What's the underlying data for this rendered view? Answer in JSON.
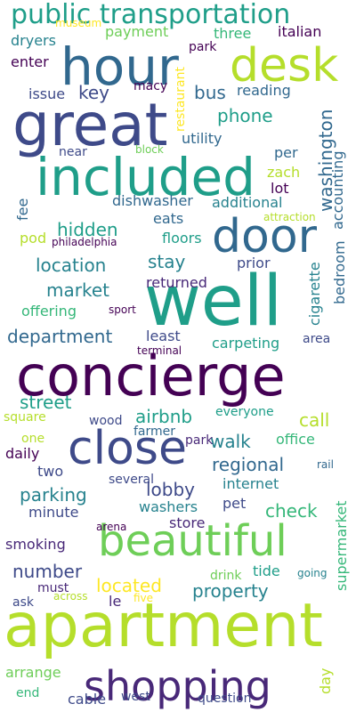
{
  "colors": {
    "background": "#ffffff",
    "palette": [
      "#440154",
      "#482878",
      "#3e4a89",
      "#31688e",
      "#26828e",
      "#1f9e89",
      "#35b779",
      "#6ece58",
      "#b5de2b",
      "#fde725"
    ]
  },
  "words": [
    {
      "text": "public transportation",
      "size": 30,
      "color": "#1f9e89"
    },
    {
      "text": "hour",
      "size": 58,
      "color": "#31688e"
    },
    {
      "text": "desk",
      "size": 52,
      "color": "#b5de2b"
    },
    {
      "text": "great",
      "size": 66,
      "color": "#3e4a89"
    },
    {
      "text": "included",
      "size": 58,
      "color": "#1f9e89"
    },
    {
      "text": "door",
      "size": 52,
      "color": "#31688e"
    },
    {
      "text": "well",
      "size": 78,
      "color": "#1f9e89"
    },
    {
      "text": "concierge",
      "size": 62,
      "color": "#440154"
    },
    {
      "text": "close",
      "size": 52,
      "color": "#3e4a89"
    },
    {
      "text": "beautiful",
      "size": 48,
      "color": "#6ece58"
    },
    {
      "text": "apartment",
      "size": 68,
      "color": "#b5de2b"
    },
    {
      "text": "shopping",
      "size": 46,
      "color": "#482878"
    },
    {
      "text": "museum",
      "size": 12,
      "color": "#fde725"
    },
    {
      "text": "payment",
      "size": 16,
      "color": "#6ece58"
    },
    {
      "text": "restaurant",
      "size": 14,
      "color": "#fde725"
    },
    {
      "text": "park",
      "size": 14,
      "color": "#440154"
    },
    {
      "text": "three",
      "size": 16,
      "color": "#35b779"
    },
    {
      "text": "italian",
      "size": 16,
      "color": "#440154"
    },
    {
      "text": "dryers",
      "size": 16,
      "color": "#26828e"
    },
    {
      "text": "enter",
      "size": 16,
      "color": "#440154"
    },
    {
      "text": "macy",
      "size": 14,
      "color": "#440154"
    },
    {
      "text": "issue",
      "size": 16,
      "color": "#3e4a89"
    },
    {
      "text": "key",
      "size": 20,
      "color": "#3e4a89"
    },
    {
      "text": "bus",
      "size": 20,
      "color": "#31688e"
    },
    {
      "text": "reading",
      "size": 16,
      "color": "#31688e"
    },
    {
      "text": "phone",
      "size": 20,
      "color": "#1f9e89"
    },
    {
      "text": "utility",
      "size": 16,
      "color": "#31688e"
    },
    {
      "text": "washington",
      "size": 20,
      "color": "#31688e"
    },
    {
      "text": "near",
      "size": 14,
      "color": "#3e4a89"
    },
    {
      "text": "block",
      "size": 12,
      "color": "#6ece58"
    },
    {
      "text": "per",
      "size": 16,
      "color": "#31688e"
    },
    {
      "text": "accounting",
      "size": 16,
      "color": "#31688e"
    },
    {
      "text": "zach",
      "size": 16,
      "color": "#b5de2b"
    },
    {
      "text": "lot",
      "size": 16,
      "color": "#440154"
    },
    {
      "text": "fee",
      "size": 16,
      "color": "#31688e"
    },
    {
      "text": "dishwasher",
      "size": 16,
      "color": "#31688e"
    },
    {
      "text": "eats",
      "size": 16,
      "color": "#31688e"
    },
    {
      "text": "additional",
      "size": 16,
      "color": "#26828e"
    },
    {
      "text": "attraction",
      "size": 12,
      "color": "#b5de2b"
    },
    {
      "text": "hidden",
      "size": 20,
      "color": "#1f9e89"
    },
    {
      "text": "pod",
      "size": 16,
      "color": "#b5de2b"
    },
    {
      "text": "philadelphia",
      "size": 12,
      "color": "#440154"
    },
    {
      "text": "floors",
      "size": 16,
      "color": "#1f9e89"
    },
    {
      "text": "bedroom",
      "size": 16,
      "color": "#31688e"
    },
    {
      "text": "location",
      "size": 20,
      "color": "#26828e"
    },
    {
      "text": "stay",
      "size": 20,
      "color": "#26828e"
    },
    {
      "text": "prior",
      "size": 16,
      "color": "#3e4a89"
    },
    {
      "text": "market",
      "size": 20,
      "color": "#26828e"
    },
    {
      "text": "returned",
      "size": 16,
      "color": "#482878"
    },
    {
      "text": "cigarette",
      "size": 16,
      "color": "#26828e"
    },
    {
      "text": "offering",
      "size": 16,
      "color": "#35b779"
    },
    {
      "text": "sport",
      "size": 12,
      "color": "#440154"
    },
    {
      "text": "department",
      "size": 20,
      "color": "#31688e"
    },
    {
      "text": "least",
      "size": 16,
      "color": "#3e4a89"
    },
    {
      "text": "carpeting",
      "size": 16,
      "color": "#1f9e89"
    },
    {
      "text": "area",
      "size": 14,
      "color": "#3e4a89"
    },
    {
      "text": "terminal",
      "size": 12,
      "color": "#440154"
    },
    {
      "text": "street",
      "size": 20,
      "color": "#1f9e89"
    },
    {
      "text": "airbnb",
      "size": 20,
      "color": "#1f9e89"
    },
    {
      "text": "everyone",
      "size": 14,
      "color": "#1f9e89"
    },
    {
      "text": "call",
      "size": 20,
      "color": "#b5de2b"
    },
    {
      "text": "square",
      "size": 14,
      "color": "#b5de2b"
    },
    {
      "text": "wood",
      "size": 14,
      "color": "#3e4a89"
    },
    {
      "text": "walk",
      "size": 20,
      "color": "#26828e"
    },
    {
      "text": "farmer",
      "size": 14,
      "color": "#31688e"
    },
    {
      "text": "one",
      "size": 14,
      "color": "#b5de2b"
    },
    {
      "text": "park",
      "size": 14,
      "color": "#482878"
    },
    {
      "text": "office",
      "size": 16,
      "color": "#35b779"
    },
    {
      "text": "daily",
      "size": 16,
      "color": "#440154"
    },
    {
      "text": "regional",
      "size": 20,
      "color": "#31688e"
    },
    {
      "text": "rail",
      "size": 12,
      "color": "#31688e"
    },
    {
      "text": "two",
      "size": 16,
      "color": "#3e4a89"
    },
    {
      "text": "parking",
      "size": 20,
      "color": "#26828e"
    },
    {
      "text": "lobby",
      "size": 20,
      "color": "#3e4a89"
    },
    {
      "text": "several",
      "size": 14,
      "color": "#3e4a89"
    },
    {
      "text": "internet",
      "size": 16,
      "color": "#26828e"
    },
    {
      "text": "minute",
      "size": 16,
      "color": "#3e4a89"
    },
    {
      "text": "washers",
      "size": 16,
      "color": "#26828e"
    },
    {
      "text": "pet",
      "size": 16,
      "color": "#3e4a89"
    },
    {
      "text": "check",
      "size": 20,
      "color": "#35b779"
    },
    {
      "text": "supermarket",
      "size": 16,
      "color": "#35b779"
    },
    {
      "text": "store",
      "size": 16,
      "color": "#482878"
    },
    {
      "text": "arena",
      "size": 12,
      "color": "#440154"
    },
    {
      "text": "smoking",
      "size": 16,
      "color": "#482878"
    },
    {
      "text": "number",
      "size": 20,
      "color": "#3e4a89"
    },
    {
      "text": "located",
      "size": 20,
      "color": "#fde725"
    },
    {
      "text": "property",
      "size": 20,
      "color": "#26828e"
    },
    {
      "text": "drink",
      "size": 14,
      "color": "#6ece58"
    },
    {
      "text": "must",
      "size": 14,
      "color": "#482878"
    },
    {
      "text": "tide",
      "size": 16,
      "color": "#1f9e89"
    },
    {
      "text": "going",
      "size": 12,
      "color": "#26828e"
    },
    {
      "text": "ask",
      "size": 14,
      "color": "#3e4a89"
    },
    {
      "text": "le",
      "size": 16,
      "color": "#482878"
    },
    {
      "text": "across",
      "size": 12,
      "color": "#b5de2b"
    },
    {
      "text": "five",
      "size": 12,
      "color": "#fde725"
    },
    {
      "text": "arrange",
      "size": 16,
      "color": "#6ece58"
    },
    {
      "text": "day",
      "size": 16,
      "color": "#b5de2b"
    },
    {
      "text": "end",
      "size": 14,
      "color": "#35b779"
    },
    {
      "text": "cable",
      "size": 16,
      "color": "#3e4a89"
    },
    {
      "text": "west",
      "size": 14,
      "color": "#3e4a89"
    },
    {
      "text": "question",
      "size": 14,
      "color": "#3e4a89"
    }
  ]
}
